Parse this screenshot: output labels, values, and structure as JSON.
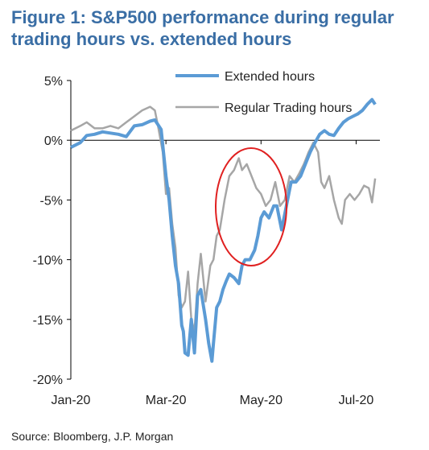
{
  "figure": {
    "title_line1": "Figure 1: S&P500 performance during regular",
    "title_line2": "trading hours vs. extended hours",
    "source": "Source: Bloomberg, J.P. Morgan"
  },
  "chart_data": {
    "type": "line",
    "ylim": [
      -20,
      5
    ],
    "yticks": [
      5,
      0,
      -5,
      -10,
      -15,
      -20
    ],
    "ytick_labels": [
      "5%",
      "0%",
      "-5%",
      "-10%",
      "-15%",
      "-20%"
    ],
    "xlim": [
      0,
      195
    ],
    "xticks": [
      0,
      60,
      120,
      180
    ],
    "xtick_labels": [
      "Jan-20",
      "Mar-20",
      "May-20",
      "Jul-20"
    ],
    "legend_position": "top-right",
    "annotation": "red ellipse highlighting Apr-20 to May-20",
    "series": [
      {
        "name": "Extended hours",
        "color": "#5b9bd5",
        "points": [
          [
            0,
            -0.6
          ],
          [
            6,
            -0.2
          ],
          [
            10,
            0.4
          ],
          [
            15,
            0.5
          ],
          [
            20,
            0.7
          ],
          [
            25,
            0.6
          ],
          [
            30,
            0.5
          ],
          [
            35,
            0.3
          ],
          [
            40,
            1.2
          ],
          [
            45,
            1.3
          ],
          [
            50,
            1.6
          ],
          [
            53,
            1.7
          ],
          [
            57,
            0.9
          ],
          [
            60,
            -3.0
          ],
          [
            62,
            -5.0
          ],
          [
            64,
            -8.0
          ],
          [
            66,
            -10.5
          ],
          [
            68,
            -12.0
          ],
          [
            70,
            -15.5
          ],
          [
            71,
            -16.0
          ],
          [
            72,
            -17.8
          ],
          [
            74,
            -18.0
          ],
          [
            76,
            -15.0
          ],
          [
            78,
            -17.8
          ],
          [
            80,
            -13.0
          ],
          [
            82,
            -12.5
          ],
          [
            85,
            -15.0
          ],
          [
            87,
            -17.0
          ],
          [
            89,
            -18.5
          ],
          [
            90,
            -17.0
          ],
          [
            92,
            -14.0
          ],
          [
            94,
            -13.5
          ],
          [
            96,
            -12.5
          ],
          [
            98,
            -11.8
          ],
          [
            100,
            -11.2
          ],
          [
            103,
            -11.5
          ],
          [
            106,
            -12.0
          ],
          [
            108,
            -10.5
          ],
          [
            110,
            -10.0
          ],
          [
            113,
            -10.0
          ],
          [
            116,
            -9.2
          ],
          [
            118,
            -8.0
          ],
          [
            120,
            -6.5
          ],
          [
            122,
            -6.0
          ],
          [
            125,
            -6.5
          ],
          [
            128,
            -5.5
          ],
          [
            130,
            -5.5
          ],
          [
            133,
            -7.5
          ],
          [
            136,
            -5.5
          ],
          [
            139,
            -3.5
          ],
          [
            142,
            -3.5
          ],
          [
            145,
            -3.0
          ],
          [
            148,
            -2.0
          ],
          [
            151,
            -1.0
          ],
          [
            154,
            -0.2
          ],
          [
            157,
            0.5
          ],
          [
            160,
            0.8
          ],
          [
            163,
            0.5
          ],
          [
            166,
            0.4
          ],
          [
            169,
            1.0
          ],
          [
            172,
            1.5
          ],
          [
            175,
            1.8
          ],
          [
            178,
            2.0
          ],
          [
            181,
            2.2
          ],
          [
            184,
            2.5
          ],
          [
            187,
            3.0
          ],
          [
            190,
            3.4
          ],
          [
            192,
            3.0
          ]
        ]
      },
      {
        "name": "Regular Trading hours",
        "color": "#a6a6a6",
        "points": [
          [
            0,
            0.8
          ],
          [
            6,
            1.2
          ],
          [
            10,
            1.5
          ],
          [
            15,
            1.0
          ],
          [
            20,
            1.0
          ],
          [
            25,
            1.2
          ],
          [
            30,
            1.0
          ],
          [
            35,
            1.5
          ],
          [
            40,
            2.0
          ],
          [
            45,
            2.5
          ],
          [
            50,
            2.8
          ],
          [
            53,
            2.5
          ],
          [
            55,
            1.2
          ],
          [
            58,
            -1.0
          ],
          [
            60,
            -4.5
          ],
          [
            62,
            -4.0
          ],
          [
            64,
            -7.0
          ],
          [
            66,
            -9.0
          ],
          [
            68,
            -13.0
          ],
          [
            70,
            -14.0
          ],
          [
            72,
            -13.5
          ],
          [
            74,
            -11.0
          ],
          [
            76,
            -15.0
          ],
          [
            78,
            -16.0
          ],
          [
            80,
            -12.0
          ],
          [
            82,
            -9.5
          ],
          [
            85,
            -13.5
          ],
          [
            88,
            -10.5
          ],
          [
            90,
            -10.0
          ],
          [
            92,
            -8.0
          ],
          [
            94,
            -7.5
          ],
          [
            97,
            -5.0
          ],
          [
            100,
            -3.0
          ],
          [
            103,
            -2.5
          ],
          [
            106,
            -1.5
          ],
          [
            108,
            -2.5
          ],
          [
            111,
            -2.0
          ],
          [
            114,
            -3.0
          ],
          [
            117,
            -4.0
          ],
          [
            120,
            -4.5
          ],
          [
            123,
            -5.5
          ],
          [
            126,
            -5.0
          ],
          [
            129,
            -3.5
          ],
          [
            132,
            -5.5
          ],
          [
            135,
            -5.0
          ],
          [
            138,
            -3.0
          ],
          [
            141,
            -3.5
          ],
          [
            144,
            -2.8
          ],
          [
            147,
            -2.0
          ],
          [
            150,
            -1.0
          ],
          [
            153,
            -0.2
          ],
          [
            156,
            -1.0
          ],
          [
            158,
            -3.5
          ],
          [
            160,
            -4.0
          ],
          [
            163,
            -3.0
          ],
          [
            166,
            -5.0
          ],
          [
            169,
            -6.5
          ],
          [
            171,
            -7.0
          ],
          [
            173,
            -5.0
          ],
          [
            176,
            -4.5
          ],
          [
            179,
            -5.0
          ],
          [
            182,
            -4.5
          ],
          [
            185,
            -3.8
          ],
          [
            188,
            -4.0
          ],
          [
            190,
            -5.2
          ],
          [
            192,
            -3.2
          ]
        ]
      }
    ]
  }
}
